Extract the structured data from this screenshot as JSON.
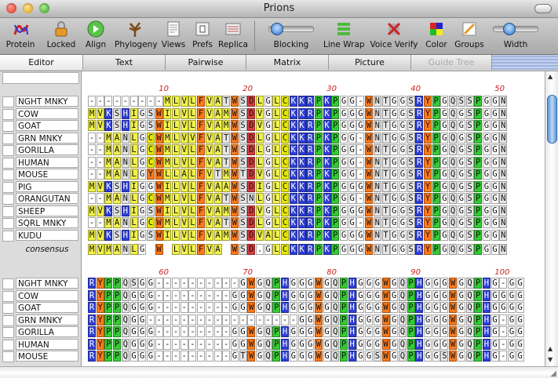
{
  "window": {
    "title": "Prions"
  },
  "toolbar": {
    "items": [
      {
        "label": "Protein",
        "icon": "protein-icon"
      },
      {
        "label": "Locked",
        "icon": "lock-icon"
      },
      {
        "label": "Align",
        "icon": "align-icon"
      },
      {
        "label": "Phylogeny",
        "icon": "tree-icon"
      },
      {
        "label": "Views",
        "icon": "views-icon"
      },
      {
        "label": "Prefs",
        "icon": "prefs-icon"
      },
      {
        "label": "Replica",
        "icon": "replica-icon"
      },
      {
        "label": "Blocking",
        "icon": "blocking-slider"
      },
      {
        "label": "Line Wrap",
        "icon": "line-wrap-icon"
      },
      {
        "label": "Voice Verify",
        "icon": "voice-verify-icon"
      },
      {
        "label": "Color",
        "icon": "color-icon"
      },
      {
        "label": "Groups",
        "icon": "groups-icon"
      },
      {
        "label": "Width",
        "icon": "width-slider"
      }
    ]
  },
  "tabs": [
    {
      "label": "Editor",
      "state": "selected"
    },
    {
      "label": "Text",
      "state": "normal"
    },
    {
      "label": "Pairwise",
      "state": "normal"
    },
    {
      "label": "Matrix",
      "state": "normal"
    },
    {
      "label": "Picture",
      "state": "normal"
    },
    {
      "label": "Guide Tree",
      "state": "disabled"
    }
  ],
  "consensus_label": "consensus",
  "block1": {
    "ruler": [
      "10",
      "20",
      "30",
      "40",
      "50"
    ],
    "sequences": [
      {
        "name": "NGHT MNKY",
        "seq": "---------MLVLFVATWSDLGLCKKRPKPGG-WNTGGSRYPGQSSPGGN"
      },
      {
        "name": "COW",
        "seq": "MVKSHIGSWILVLFVAMWSDVGLCKKRPKPGGGWNTGGSRYPGQGSPGGN"
      },
      {
        "name": "GOAT",
        "seq": "MVKSHIGSWILVLFVAMWSDVGLCKKRPKPGGGWNTGGSRYPGQGSPGGN"
      },
      {
        "name": "GRN MNKY",
        "seq": "--MANLGCWMLVVFVATWSDLGLCKKRPKPGG-WNTGGSRYPGQGSPGGN"
      },
      {
        "name": "GORILLA",
        "seq": "--MANLGCWMLVLFVATWSDLGLCKKRPKPGG-WNTGGSRYPGQGSPGGN"
      },
      {
        "name": "HUMAN",
        "seq": "--MANLGCWMLVLFVATWSDLGLCKKRPKPGG-WNTGGSRYPGQGSPGGN"
      },
      {
        "name": "MOUSE",
        "seq": "--MANLGYWLLALFVTMWTDVGLCKKRPKPGG-WNTGGSRYPGQGSPGGN"
      },
      {
        "name": "PIG",
        "seq": "MVKSHIGGWILVLFVAAWSDIGLCKKRPKPGGGWNTGGSRYPGQGSPGGN"
      },
      {
        "name": "ORANGUTAN",
        "seq": "--MANLGCWMLVLFVATWSNLGLCKKRPKPGG-WNTGGSRYPGQGSPGGN"
      },
      {
        "name": "SHEEP",
        "seq": "MVKSHIGSWILVLFVAMWSDVGLCKKRPKPGGGWNTGGSRYPGQGSPGGN"
      },
      {
        "name": "SQRL MNKY",
        "seq": "--MANLGCWMLVLFVATWSDLGLCKKRPKPGG-WNTGGSRYPGQGSPGGN"
      },
      {
        "name": "KUDU",
        "seq": "MVKSHIGSWILVLFVAMWSDVALCKKRPKPGGGWNTGGSRYPGQGSPGGN"
      }
    ],
    "consensus": "MVMANLG W LVLFVA WSD.GLCKKRPKPGGGWNTGGSRYPGQGSPGGN"
  },
  "block2": {
    "ruler": [
      "60",
      "70",
      "80",
      "90",
      "100"
    ],
    "sequences": [
      {
        "name": "NGHT MNKY",
        "seq": "RYPPQSGG----------GWGQPHGGGWGQPHGGGWGQPHGGGWGQPHG-GG"
      },
      {
        "name": "COW",
        "seq": "RYPPQGGG---------GGWGQPHGGGWGQPHGGGWGQPHGGGWGQPHGGGG"
      },
      {
        "name": "GOAT",
        "seq": "RYPPQGGG---------GGWGQPHGGGWGQPHGGGWGQPHGGGWGQPHGGGG"
      },
      {
        "name": "GRN MNKY",
        "seq": "RYPPQGG------------------GGWGQPHGGGWGQPHGGGWGQPHG-GG"
      },
      {
        "name": "GORILLA",
        "seq": "RYPPQGGG---------GGWGQPHGGGWGQPHGGGWGQPHGGGWGQPHG-GG"
      },
      {
        "name": "HUMAN",
        "seq": "RYPPQGGG---------GGWGQPHGGGWGQPHGGGWGQPHGGGWGQPHG-GG"
      },
      {
        "name": "MOUSE",
        "seq": "RYPPQGGG---------GTWGQPHGGGWGQPHGGSWGQPHGGSWGQPHG-GG"
      }
    ]
  },
  "colors": {
    "hydrophobic": "#f2f24a",
    "positive": "#2f3fd6",
    "negative": "#d93b3b",
    "polar": "#e6e6e6",
    "glycine": "#ffffff",
    "proline": "#33cc33",
    "aromatic": "#ff7a1a",
    "cysteine": "#e8e800",
    "accent": "#cc2020"
  }
}
